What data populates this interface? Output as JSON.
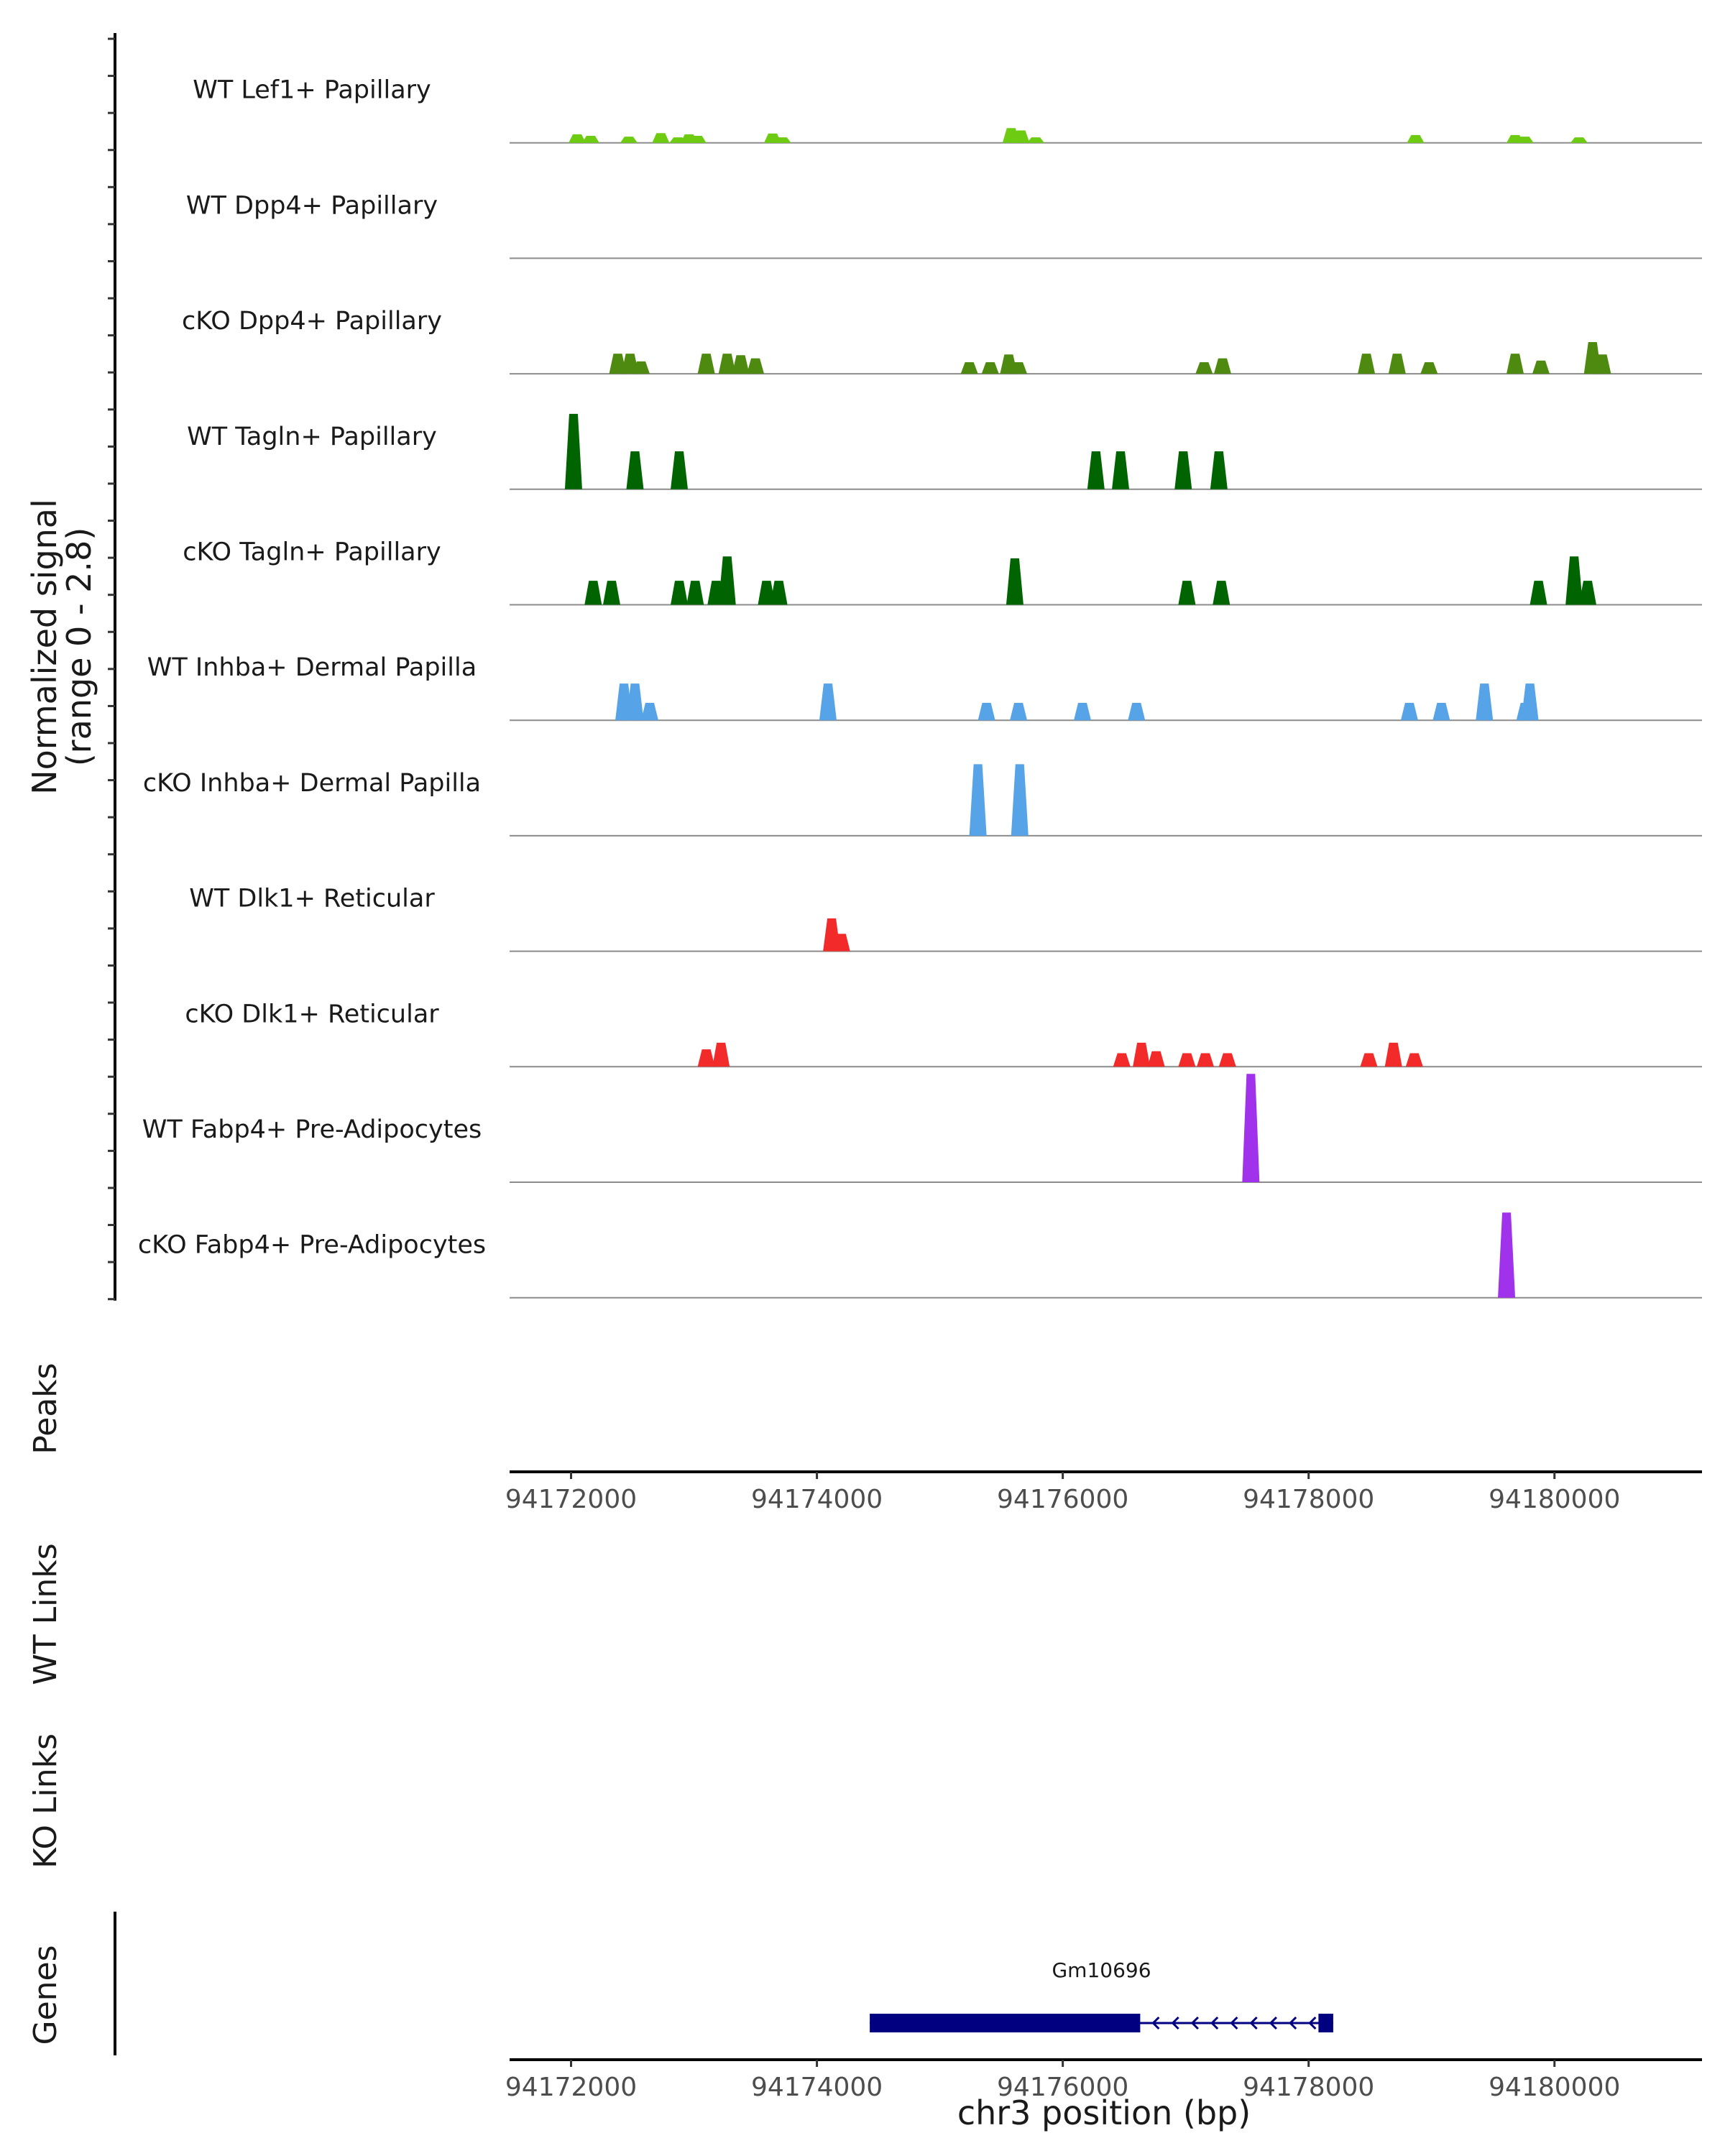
{
  "chart_data": {
    "type": "area",
    "title": "",
    "chromosome": "chr3",
    "xlabel": "chr3 position (bp)",
    "xlim": [
      94171500,
      94181200
    ],
    "xticks": [
      94172000,
      94174000,
      94176000,
      94178000,
      94180000
    ],
    "xtick_labels": [
      "94172000",
      "94174000",
      "94176000",
      "94178000",
      "94180000"
    ],
    "ylabel_line1": "Normalized signal",
    "ylabel_line2": "(range 0 - 2.8)",
    "ylim": [
      0,
      2.8
    ],
    "tracks": [
      {
        "name": "WT Lef1+ Papillary",
        "color": "#6dcc12",
        "peaks": [
          [
            94172050,
            0.22
          ],
          [
            94172160,
            0.18
          ],
          [
            94172470,
            0.16
          ],
          [
            94172730,
            0.25
          ],
          [
            94172870,
            0.14
          ],
          [
            94172960,
            0.22
          ],
          [
            94173030,
            0.18
          ],
          [
            94173640,
            0.24
          ],
          [
            94173720,
            0.14
          ],
          [
            94175580,
            0.38
          ],
          [
            94175660,
            0.32
          ],
          [
            94175780,
            0.14
          ],
          [
            94178870,
            0.2
          ],
          [
            94179680,
            0.2
          ],
          [
            94179760,
            0.16
          ],
          [
            94180200,
            0.14
          ]
        ]
      },
      {
        "name": "WT Dpp4+ Papillary",
        "color": "#4e8a10",
        "peaks": []
      },
      {
        "name": "cKO Dpp4+ Papillary",
        "color": "#4e8a10",
        "peaks": [
          [
            94172380,
            0.52
          ],
          [
            94172480,
            0.52
          ],
          [
            94172570,
            0.32
          ],
          [
            94173100,
            0.52
          ],
          [
            94173270,
            0.52
          ],
          [
            94173380,
            0.48
          ],
          [
            94173500,
            0.4
          ],
          [
            94175240,
            0.3
          ],
          [
            94175410,
            0.3
          ],
          [
            94175560,
            0.5
          ],
          [
            94175640,
            0.3
          ],
          [
            94177150,
            0.3
          ],
          [
            94177300,
            0.4
          ],
          [
            94178470,
            0.52
          ],
          [
            94178720,
            0.52
          ],
          [
            94178980,
            0.3
          ],
          [
            94179680,
            0.52
          ],
          [
            94179890,
            0.34
          ],
          [
            94180310,
            0.82
          ],
          [
            94180390,
            0.5
          ]
        ]
      },
      {
        "name": "WT Tagln+ Papillary",
        "color": "#006400",
        "peaks": [
          [
            94172020,
            1.95
          ],
          [
            94172520,
            0.98
          ],
          [
            94172880,
            0.98
          ],
          [
            94176270,
            0.98
          ],
          [
            94176470,
            0.98
          ],
          [
            94176980,
            0.98
          ],
          [
            94177270,
            0.98
          ]
        ]
      },
      {
        "name": "cKO Tagln+ Papillary",
        "color": "#006400",
        "peaks": [
          [
            94172180,
            0.62
          ],
          [
            94172330,
            0.62
          ],
          [
            94172880,
            0.62
          ],
          [
            94173010,
            0.62
          ],
          [
            94173270,
            1.25
          ],
          [
            94173180,
            0.62
          ],
          [
            94173590,
            0.62
          ],
          [
            94173690,
            0.62
          ],
          [
            94175610,
            1.2
          ],
          [
            94177010,
            0.62
          ],
          [
            94177290,
            0.62
          ],
          [
            94179870,
            0.62
          ],
          [
            94180160,
            1.25
          ],
          [
            94180270,
            0.62
          ]
        ]
      },
      {
        "name": "WT Inhba+ Dermal Papilla",
        "color": "#56a3e8",
        "peaks": [
          [
            94172430,
            0.95
          ],
          [
            94172520,
            0.95
          ],
          [
            94172640,
            0.45
          ],
          [
            94174090,
            0.95
          ],
          [
            94175380,
            0.45
          ],
          [
            94175640,
            0.45
          ],
          [
            94176160,
            0.45
          ],
          [
            94176600,
            0.45
          ],
          [
            94178820,
            0.45
          ],
          [
            94179080,
            0.45
          ],
          [
            94179430,
            0.95
          ],
          [
            94179800,
            0.95
          ],
          [
            94179760,
            0.45
          ]
        ]
      },
      {
        "name": "cKO Inhba+ Dermal Papilla",
        "color": "#56a3e8",
        "peaks": [
          [
            94175310,
            1.85
          ],
          [
            94175650,
            1.85
          ]
        ]
      },
      {
        "name": "WT Dlk1+ Reticular",
        "color": "#f22a2a",
        "peaks": [
          [
            94174120,
            0.85
          ],
          [
            94174200,
            0.45
          ]
        ]
      },
      {
        "name": "cKO Dlk1+ Reticular",
        "color": "#f22a2a",
        "peaks": [
          [
            94173100,
            0.45
          ],
          [
            94173220,
            0.62
          ],
          [
            94176480,
            0.35
          ],
          [
            94176640,
            0.62
          ],
          [
            94176760,
            0.4
          ],
          [
            94177010,
            0.35
          ],
          [
            94177160,
            0.35
          ],
          [
            94177340,
            0.35
          ],
          [
            94178490,
            0.35
          ],
          [
            94178690,
            0.62
          ],
          [
            94178860,
            0.35
          ]
        ]
      },
      {
        "name": "WT Fabp4+ Pre-Adipocytes",
        "color": "#a032eb",
        "peaks": [
          [
            94177530,
            2.8
          ]
        ]
      },
      {
        "name": "cKO Fabp4+ Pre-Adipocytes",
        "color": "#a032eb",
        "peaks": [
          [
            94179610,
            2.2
          ]
        ]
      }
    ],
    "panels": {
      "peaks": "Peaks",
      "wt_links": "WT Links",
      "ko_links": "KO Links",
      "genes": "Genes"
    },
    "gene": {
      "name": "Gm10696",
      "strand": "-",
      "start": 94174430,
      "end": 94178200,
      "thick_start": 94174430,
      "thick_end": 94176630,
      "last_exon_start": 94178080,
      "color": "#000080"
    }
  }
}
